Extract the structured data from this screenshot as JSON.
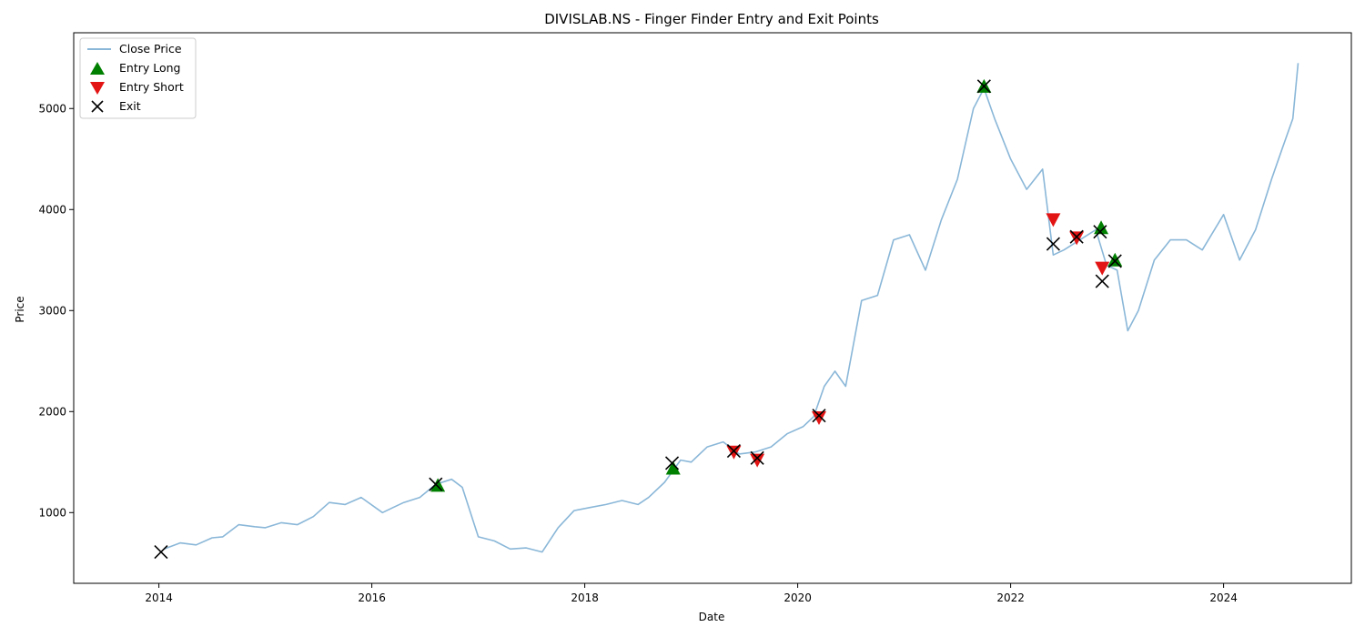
{
  "chart_data": {
    "type": "line",
    "title": "DIVISLAB.NS - Finger Finder Entry and Exit Points",
    "xlabel": "Date",
    "ylabel": "Price",
    "xlim": [
      2013.2,
      2025.2
    ],
    "ylim": [
      300,
      5750
    ],
    "xticks": [
      2014,
      2016,
      2018,
      2020,
      2022,
      2024
    ],
    "yticks": [
      1000,
      2000,
      3000,
      4000,
      5000
    ],
    "legend_position": "upper-left",
    "grid": false,
    "colors": {
      "close_price": "#8ab7d8",
      "entry_long": "#008000",
      "entry_short": "#e31414",
      "exit": "#000000"
    },
    "series": [
      {
        "name": "Close Price",
        "kind": "line",
        "x": [
          2014.05,
          2014.2,
          2014.35,
          2014.5,
          2014.6,
          2014.75,
          2014.9,
          2015.0,
          2015.15,
          2015.3,
          2015.45,
          2015.6,
          2015.75,
          2015.9,
          2016.1,
          2016.2,
          2016.3,
          2016.45,
          2016.6,
          2016.75,
          2016.85,
          2017.0,
          2017.15,
          2017.3,
          2017.45,
          2017.6,
          2017.75,
          2017.9,
          2018.05,
          2018.2,
          2018.35,
          2018.5,
          2018.6,
          2018.75,
          2018.9,
          2019.0,
          2019.15,
          2019.3,
          2019.45,
          2019.6,
          2019.75,
          2019.9,
          2020.05,
          2020.15,
          2020.25,
          2020.35,
          2020.45,
          2020.6,
          2020.75,
          2020.9,
          2021.05,
          2021.2,
          2021.35,
          2021.5,
          2021.65,
          2021.75,
          2021.85,
          2022.0,
          2022.15,
          2022.3,
          2022.4,
          2022.5,
          2022.65,
          2022.8,
          2022.9,
          2023.0,
          2023.1,
          2023.2,
          2023.35,
          2023.5,
          2023.65,
          2023.8,
          2024.0,
          2024.15,
          2024.3,
          2024.45,
          2024.55,
          2024.65,
          2024.7
        ],
        "values": [
          640,
          700,
          680,
          750,
          760,
          880,
          860,
          850,
          900,
          880,
          960,
          1100,
          1080,
          1150,
          1000,
          1050,
          1100,
          1150,
          1280,
          1330,
          1250,
          760,
          720,
          640,
          650,
          610,
          850,
          1020,
          1050,
          1080,
          1120,
          1080,
          1150,
          1300,
          1520,
          1500,
          1650,
          1700,
          1580,
          1600,
          1650,
          1780,
          1850,
          1950,
          2250,
          2400,
          2250,
          3100,
          3150,
          3700,
          3750,
          3400,
          3900,
          4300,
          5000,
          5200,
          4900,
          4500,
          4200,
          4400,
          3550,
          3600,
          3700,
          3800,
          3450,
          3400,
          2800,
          3000,
          3500,
          3700,
          3700,
          3600,
          3950,
          3500,
          3800,
          4300,
          4600,
          4900,
          5450
        ]
      },
      {
        "name": "Entry Long",
        "kind": "marker-triangle-up",
        "x": [
          2016.62,
          2018.83,
          2021.75,
          2022.85,
          2022.98
        ],
        "values": [
          1270,
          1440,
          5220,
          3820,
          3500
        ]
      },
      {
        "name": "Entry Short",
        "kind": "marker-triangle-down",
        "x": [
          2019.4,
          2019.62,
          2020.2,
          2022.4,
          2022.62,
          2022.86
        ],
        "values": [
          1600,
          1520,
          1940,
          3900,
          3720,
          3420
        ]
      },
      {
        "name": "Exit",
        "kind": "marker-x",
        "x": [
          2014.02,
          2016.6,
          2018.82,
          2019.4,
          2019.62,
          2020.2,
          2021.75,
          2022.4,
          2022.62,
          2022.84,
          2022.86,
          2022.98
        ],
        "values": [
          610,
          1280,
          1490,
          1610,
          1540,
          1960,
          5220,
          3660,
          3730,
          3780,
          3290,
          3490
        ]
      }
    ]
  }
}
